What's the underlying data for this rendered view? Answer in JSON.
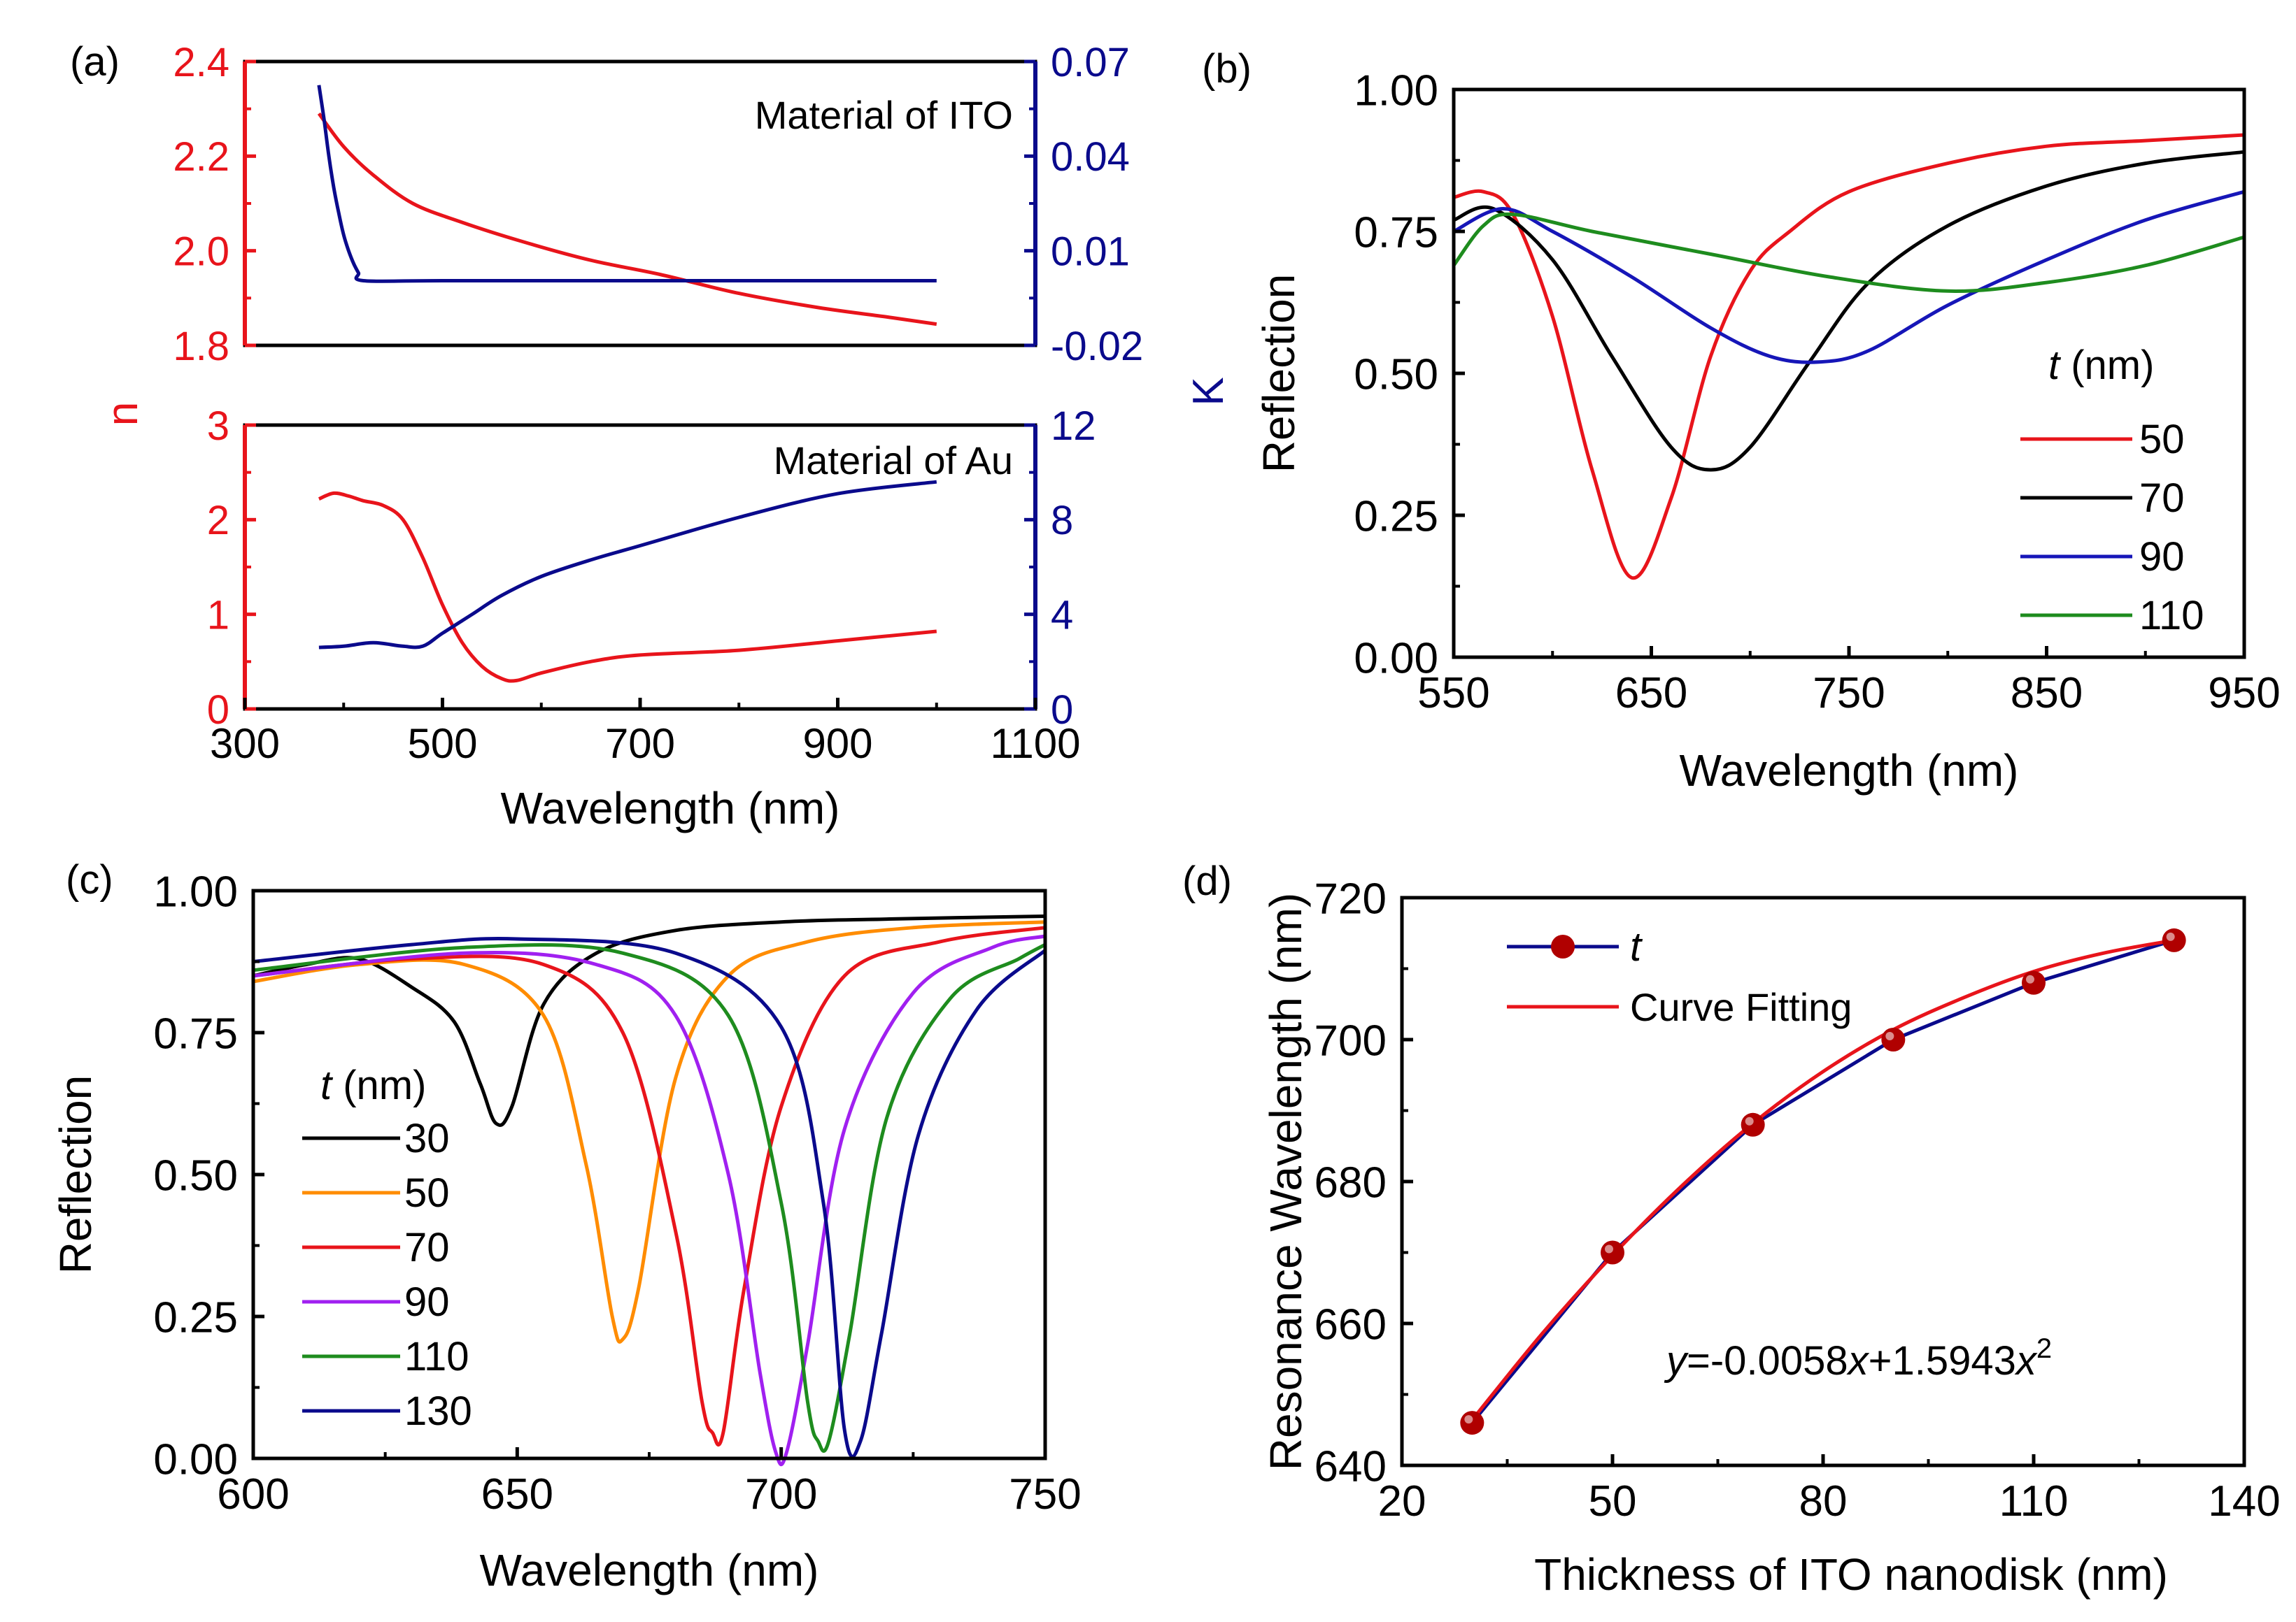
{
  "colors": {
    "red": "#e8141b",
    "black": "#000000",
    "navy": "#0a0a8c",
    "blue": "#1616b8",
    "green": "#1e8c1e",
    "orange": "#ff8c00",
    "purple": "#a020f0",
    "darkred": "#b00000"
  },
  "chart_data": [
    {
      "id": "a",
      "panel_label": "(a)",
      "type": "line",
      "xlabel": "Wavelength (nm)",
      "left_ylabel": "n",
      "right_ylabel": "K",
      "x_ticks": [
        "300",
        "500",
        "700",
        "900",
        "1100"
      ],
      "xlim": [
        300,
        1100
      ],
      "subplots": [
        {
          "name": "ITO",
          "annotation": "Material of ITO",
          "ylim_left": [
            1.8,
            2.4
          ],
          "ylim_right": [
            -0.02,
            0.07
          ],
          "left_ticks": [
            "1.8",
            "2.0",
            "2.2",
            "2.4"
          ],
          "right_ticks": [
            "-0.02",
            "0.01",
            "0.04",
            "0.07"
          ],
          "series": [
            {
              "name": "n",
              "axis": "left",
              "color": "red",
              "x": [
                375,
                400,
                430,
                470,
                520,
                580,
                650,
                720,
                800,
                880,
                950,
                1000
              ],
              "y": [
                2.29,
                2.22,
                2.16,
                2.1,
                2.06,
                2.02,
                1.98,
                1.95,
                1.91,
                1.88,
                1.86,
                1.845
              ]
            },
            {
              "name": "K",
              "axis": "right",
              "color": "navy",
              "x": [
                375,
                380,
                385,
                390,
                395,
                400,
                405,
                410,
                415,
                420,
                500,
                700,
                1000
              ],
              "y": [
                0.0625,
                0.052,
                0.04,
                0.03,
                0.022,
                0.015,
                0.01,
                0.006,
                0.003,
                0.0005,
                0.0005,
                0.0005,
                0.0005
              ]
            }
          ]
        },
        {
          "name": "Au",
          "annotation": "Material of Au",
          "ylim_left": [
            0,
            3
          ],
          "ylim_right": [
            0,
            12
          ],
          "left_ticks": [
            "0",
            "1",
            "2",
            "3"
          ],
          "right_ticks": [
            "0",
            "4",
            "8",
            "12"
          ],
          "series": [
            {
              "name": "n",
              "axis": "left",
              "color": "red",
              "x": [
                375,
                390,
                405,
                420,
                440,
                460,
                480,
                500,
                520,
                540,
                560,
                575,
                600,
                650,
                700,
                800,
                900,
                1000
              ],
              "y": [
                2.22,
                2.28,
                2.25,
                2.2,
                2.15,
                2.0,
                1.6,
                1.1,
                0.7,
                0.45,
                0.32,
                0.3,
                0.38,
                0.5,
                0.57,
                0.62,
                0.72,
                0.82
              ]
            },
            {
              "name": "K",
              "axis": "right",
              "color": "navy",
              "x": [
                375,
                400,
                430,
                460,
                480,
                500,
                530,
                560,
                600,
                650,
                700,
                800,
                900,
                1000
              ],
              "y": [
                2.6,
                2.65,
                2.8,
                2.65,
                2.65,
                3.2,
                4.0,
                4.8,
                5.6,
                6.3,
                6.9,
                8.1,
                9.1,
                9.6
              ]
            }
          ]
        }
      ]
    },
    {
      "id": "b",
      "panel_label": "(b)",
      "type": "line",
      "xlabel": "Wavelength (nm)",
      "ylabel": "Reflection",
      "xlim": [
        550,
        950
      ],
      "ylim": [
        0,
        1
      ],
      "x_ticks": [
        "550",
        "650",
        "750",
        "850",
        "950"
      ],
      "y_ticks": [
        "0.00",
        "0.25",
        "0.50",
        "0.75",
        "1.00"
      ],
      "legend_title_italic": "t",
      "legend_title_rest": " (nm)",
      "series": [
        {
          "name": "50",
          "color": "red",
          "x": [
            550,
            565,
            580,
            600,
            620,
            640,
            660,
            680,
            700,
            720,
            750,
            800,
            850,
            900,
            950
          ],
          "y": [
            0.81,
            0.82,
            0.78,
            0.6,
            0.33,
            0.14,
            0.28,
            0.53,
            0.68,
            0.75,
            0.82,
            0.87,
            0.9,
            0.91,
            0.92
          ]
        },
        {
          "name": "70",
          "color": "black",
          "x": [
            550,
            570,
            600,
            630,
            660,
            680,
            700,
            730,
            760,
            800,
            850,
            900,
            950
          ],
          "y": [
            0.77,
            0.79,
            0.7,
            0.53,
            0.37,
            0.33,
            0.37,
            0.52,
            0.66,
            0.76,
            0.83,
            0.87,
            0.89
          ]
        },
        {
          "name": "90",
          "color": "blue",
          "x": [
            550,
            575,
            600,
            640,
            680,
            710,
            735,
            760,
            800,
            850,
            900,
            950
          ],
          "y": [
            0.75,
            0.79,
            0.75,
            0.67,
            0.58,
            0.53,
            0.52,
            0.54,
            0.62,
            0.7,
            0.77,
            0.82
          ]
        },
        {
          "name": "110",
          "color": "green",
          "x": [
            550,
            565,
            580,
            620,
            680,
            740,
            800,
            850,
            900,
            950
          ],
          "y": [
            0.69,
            0.76,
            0.78,
            0.75,
            0.71,
            0.67,
            0.645,
            0.66,
            0.69,
            0.74
          ]
        }
      ]
    },
    {
      "id": "c",
      "panel_label": "(c)",
      "type": "line",
      "xlabel": "Wavelength (nm)",
      "ylabel": "Reflection",
      "xlim": [
        600,
        750
      ],
      "ylim": [
        0,
        1
      ],
      "x_ticks": [
        "600",
        "650",
        "700",
        "750"
      ],
      "y_ticks": [
        "0.00",
        "0.25",
        "0.50",
        "0.75",
        "1.00"
      ],
      "legend_title_italic": "t",
      "legend_title_rest": " (nm)",
      "series": [
        {
          "name": "30",
          "color": "black",
          "x": [
            600,
            610,
            620,
            630,
            638,
            643,
            646,
            649,
            655,
            665,
            680,
            700,
            720,
            750
          ],
          "y": [
            0.85,
            0.87,
            0.88,
            0.83,
            0.77,
            0.66,
            0.59,
            0.62,
            0.8,
            0.89,
            0.93,
            0.945,
            0.95,
            0.955
          ]
        },
        {
          "name": "50",
          "color": "orange",
          "x": [
            600,
            620,
            640,
            655,
            663,
            668,
            670,
            673,
            680,
            690,
            705,
            725,
            750
          ],
          "y": [
            0.84,
            0.87,
            0.87,
            0.78,
            0.52,
            0.25,
            0.21,
            0.3,
            0.67,
            0.85,
            0.91,
            0.935,
            0.945
          ]
        },
        {
          "name": "70",
          "color": "red",
          "x": [
            600,
            630,
            655,
            670,
            680,
            685,
            687,
            689,
            693,
            700,
            712,
            730,
            750
          ],
          "y": [
            0.85,
            0.88,
            0.87,
            0.75,
            0.4,
            0.1,
            0.045,
            0.045,
            0.3,
            0.62,
            0.85,
            0.91,
            0.935
          ]
        },
        {
          "name": "90",
          "color": "purple",
          "x": [
            600,
            640,
            665,
            680,
            690,
            696,
            699,
            701,
            705,
            712,
            725,
            740,
            750
          ],
          "y": [
            0.85,
            0.89,
            0.87,
            0.78,
            0.5,
            0.15,
            0.01,
            0.01,
            0.2,
            0.58,
            0.82,
            0.9,
            0.92
          ]
        },
        {
          "name": "110",
          "color": "green",
          "x": [
            600,
            640,
            670,
            690,
            700,
            705,
            707,
            709,
            713,
            720,
            732,
            745,
            750
          ],
          "y": [
            0.86,
            0.9,
            0.89,
            0.78,
            0.45,
            0.1,
            0.03,
            0.03,
            0.22,
            0.6,
            0.81,
            0.88,
            0.905
          ]
        },
        {
          "name": "130",
          "color": "navy",
          "x": [
            600,
            630,
            650,
            680,
            700,
            708,
            712,
            715,
            719,
            726,
            737,
            750
          ],
          "y": [
            0.875,
            0.905,
            0.915,
            0.89,
            0.76,
            0.45,
            0.05,
            0.03,
            0.22,
            0.57,
            0.79,
            0.895
          ]
        }
      ]
    },
    {
      "id": "d",
      "panel_label": "(d)",
      "type": "scatter",
      "xlabel": "Thickness of  ITO nanodisk (nm)",
      "ylabel": "Resonance Wavelength (nm)",
      "xlim": [
        20,
        140
      ],
      "ylim": [
        640,
        720
      ],
      "x_ticks": [
        "20",
        "50",
        "80",
        "110",
        "140"
      ],
      "y_ticks": [
        "640",
        "660",
        "680",
        "700",
        "720"
      ],
      "legend": {
        "points_label_italic": "t",
        "fit_label": "Curve Fitting"
      },
      "series": [
        {
          "name": "t",
          "color": "navy",
          "marker_color": "darkred",
          "x": [
            30,
            50,
            70,
            90,
            110,
            130
          ],
          "y": [
            646,
            670,
            688,
            700,
            708,
            714
          ]
        },
        {
          "name": "Curve Fitting",
          "color": "red",
          "x": [
            30,
            40,
            50,
            60,
            70,
            80,
            90,
            100,
            110,
            120,
            130
          ],
          "y": [
            646.4,
            658.6,
            669.6,
            679.5,
            688.2,
            695.5,
            701.4,
            705.9,
            709.6,
            712.2,
            714
          ]
        }
      ],
      "equation": {
        "y": "y",
        "mid": "=-0.0058",
        "x1": "x",
        "plus": "+1.5943",
        "x2": "x",
        "exp": "2"
      }
    }
  ]
}
